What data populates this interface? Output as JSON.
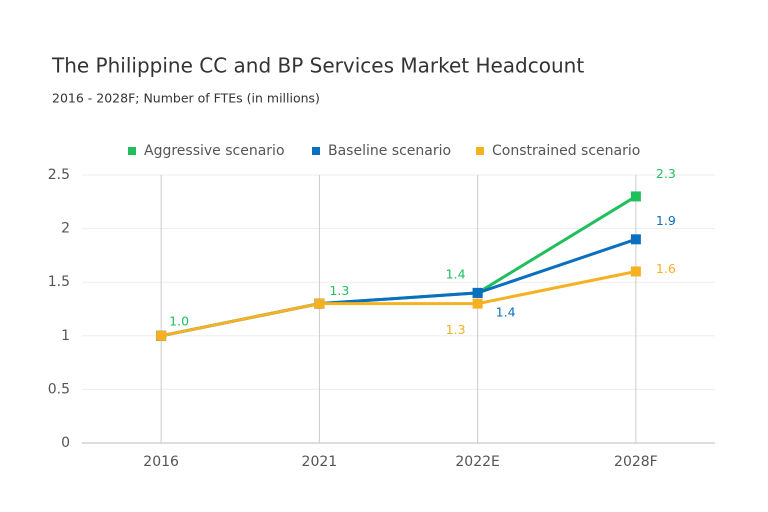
{
  "chart_data": {
    "type": "line",
    "title": "The Philippine CC and BP Services Market Headcount",
    "subtitle": "2016 - 2028F; Number of FTEs (in millions)",
    "categories": [
      "2016",
      "2021",
      "2022E",
      "2028F"
    ],
    "series": [
      {
        "name": "Aggressive scenario",
        "color": "#1fbf5c",
        "values": [
          1,
          1.3,
          1.4,
          2.3
        ],
        "value_labels": [
          "1.0",
          "1.3",
          "1.4",
          "2.3"
        ]
      },
      {
        "name": "Baseline scenario",
        "color": "#0b6fbf",
        "values": [
          1,
          1.3,
          1.4,
          1.9
        ],
        "value_labels": [
          null,
          null,
          "1.4",
          "1.9"
        ]
      },
      {
        "name": "Constrained scenario",
        "color": "#f5b122",
        "values": [
          1,
          1.3,
          1.3,
          1.6
        ],
        "value_labels": [
          null,
          null,
          "1.3",
          "1.6"
        ]
      }
    ],
    "ylim": [
      0,
      2.5
    ],
    "yticks": [
      0,
      0.5,
      1,
      1.5,
      2,
      2.5
    ],
    "grid": true,
    "legend": "top"
  }
}
